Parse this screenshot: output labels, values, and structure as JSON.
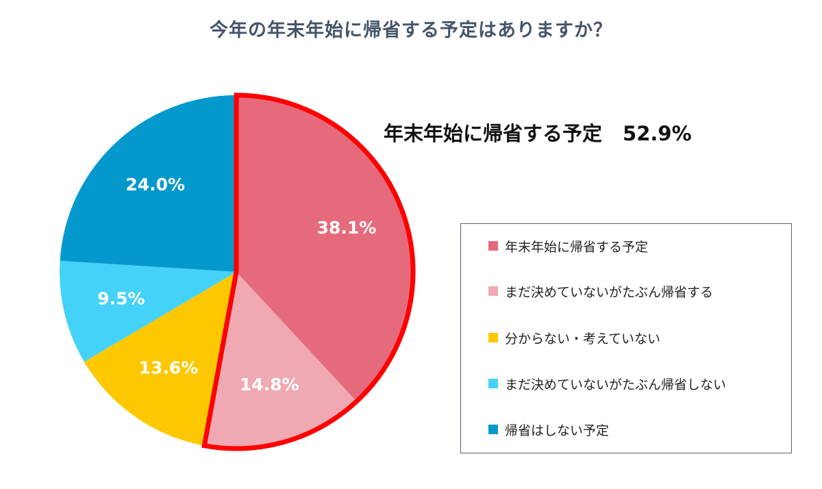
{
  "chart_data": {
    "type": "pie",
    "title": "今年の年末年始に帰省する予定はありますか？",
    "slices": [
      {
        "label": "年末年始に帰省する予定",
        "value": 38.1,
        "display": "38.1%",
        "color": "#e56b7c"
      },
      {
        "label": "まだ決めていないがたぶん帰省する",
        "value": 14.8,
        "display": "14.8%",
        "color": "#f0a9b2"
      },
      {
        "label": "分からない・考えていない",
        "value": 13.6,
        "display": "13.6%",
        "color": "#fec800"
      },
      {
        "label": "まだ決めていないがたぶん帰省しない",
        "value": 9.5,
        "display": "9.5%",
        "color": "#45d2f8"
      },
      {
        "label": "帰省はしない予定",
        "value": 24.0,
        "display": "24.0%",
        "color": "#0499cd"
      }
    ],
    "highlight": {
      "label": "年末年始に帰省する予定",
      "value": 52.9,
      "display": "52.9%",
      "covers": [
        0,
        1
      ],
      "outline_color": "#ff0000"
    },
    "legend_position": "right"
  }
}
